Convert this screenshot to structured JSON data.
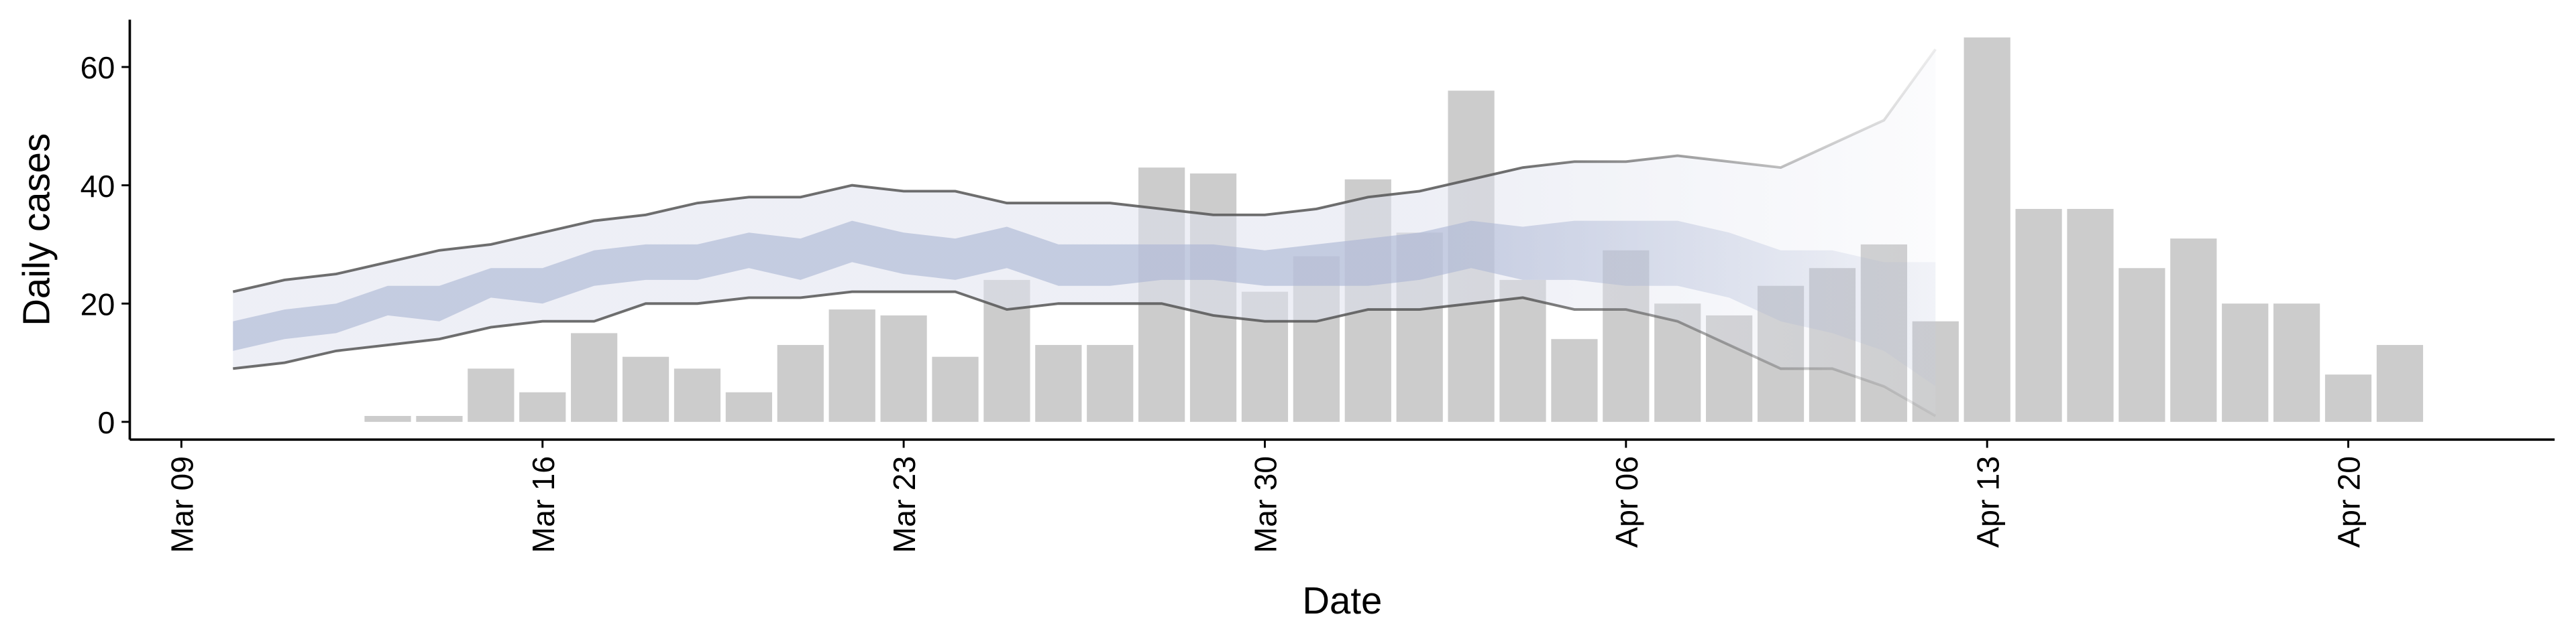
{
  "chart_data": {
    "type": "bar",
    "xlabel": "Date",
    "ylabel": "Daily cases",
    "x": [
      "Mar 13",
      "Mar 14",
      "Mar 15",
      "Mar 16",
      "Mar 17",
      "Mar 18",
      "Mar 19",
      "Mar 20",
      "Mar 21",
      "Mar 22",
      "Mar 23",
      "Mar 24",
      "Mar 25",
      "Mar 26",
      "Mar 27",
      "Mar 28",
      "Mar 29",
      "Mar 30",
      "Mar 31",
      "Apr 01",
      "Apr 02",
      "Apr 03",
      "Apr 04",
      "Apr 05",
      "Apr 06",
      "Apr 07",
      "Apr 08",
      "Apr 09",
      "Apr 10",
      "Apr 11",
      "Apr 12",
      "Apr 13",
      "Apr 14",
      "Apr 15",
      "Apr 16",
      "Apr 17",
      "Apr 18",
      "Apr 19",
      "Apr 20",
      "Apr 21"
    ],
    "values": [
      1,
      1,
      9,
      5,
      15,
      11,
      9,
      5,
      13,
      19,
      18,
      11,
      24,
      13,
      13,
      43,
      42,
      22,
      28,
      41,
      32,
      56,
      24,
      14,
      29,
      20,
      18,
      23,
      26,
      30,
      17,
      65,
      36,
      36,
      26,
      31,
      20,
      20,
      8,
      13
    ],
    "color": "#cccccc",
    "band_x": [
      "Mar 10",
      "Mar 11",
      "Mar 12",
      "Mar 13",
      "Mar 14",
      "Mar 15",
      "Mar 16",
      "Mar 17",
      "Mar 18",
      "Mar 19",
      "Mar 20",
      "Mar 21",
      "Mar 22",
      "Mar 23",
      "Mar 24",
      "Mar 25",
      "Mar 26",
      "Mar 27",
      "Mar 28",
      "Mar 29",
      "Mar 30",
      "Mar 31",
      "Apr 01",
      "Apr 02",
      "Apr 03",
      "Apr 04",
      "Apr 05",
      "Apr 06",
      "Apr 07",
      "Apr 08",
      "Apr 09",
      "Apr 10",
      "Apr 11",
      "Apr 12"
    ],
    "bands": [
      {
        "color": "#dfe2ee",
        "line_color": "#555555",
        "lower": [
          9,
          10,
          12,
          13,
          14,
          16,
          17,
          17,
          20,
          20,
          21,
          21,
          22,
          22,
          22,
          19,
          20,
          20,
          20,
          18,
          17,
          17,
          19,
          19,
          20,
          21,
          19,
          19,
          17,
          13,
          9,
          9,
          6,
          1
        ],
        "upper": [
          22,
          24,
          25,
          27,
          29,
          30,
          32,
          34,
          35,
          37,
          38,
          38,
          40,
          39,
          39,
          37,
          37,
          37,
          36,
          35,
          35,
          36,
          38,
          39,
          41,
          43,
          44,
          44,
          45,
          44,
          43,
          47,
          51,
          63
        ]
      },
      {
        "color": "#a9b4d3",
        "lower": [
          12,
          14,
          15,
          18,
          17,
          21,
          20,
          23,
          24,
          24,
          26,
          24,
          27,
          25,
          24,
          26,
          23,
          23,
          24,
          24,
          23,
          23,
          23,
          24,
          26,
          24,
          24,
          23,
          23,
          21,
          17,
          15,
          12,
          6
        ],
        "upper": [
          17,
          19,
          20,
          23,
          23,
          26,
          26,
          29,
          30,
          30,
          32,
          31,
          34,
          32,
          31,
          33,
          30,
          30,
          30,
          30,
          29,
          30,
          31,
          32,
          34,
          33,
          34,
          34,
          34,
          32,
          29,
          29,
          27,
          27
        ]
      }
    ],
    "xlim": [
      "Mar 08",
      "Apr 24"
    ],
    "xticks": [
      "Mar 09",
      "Mar 16",
      "Mar 23",
      "Mar 30",
      "Apr 06",
      "Apr 13",
      "Apr 20"
    ],
    "ylim": [
      -3,
      68
    ],
    "yticks": [
      0,
      20,
      40,
      60
    ]
  }
}
